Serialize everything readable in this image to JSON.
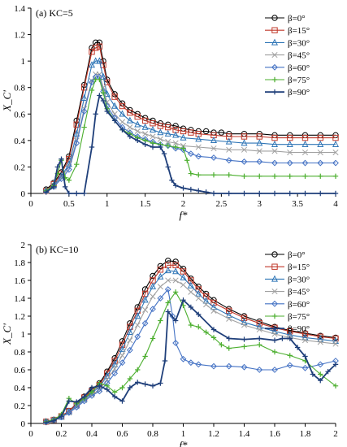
{
  "chart_data": [
    {
      "type": "line",
      "title": "(a) KC=5",
      "xlabel": "f*",
      "ylabel": "X_C'",
      "xlim": [
        0,
        4
      ],
      "ylim": [
        0,
        1.4
      ],
      "xticks": [
        "0",
        "0.5",
        "1",
        "1.5",
        "2",
        "2.5",
        "3",
        "3.5",
        "4"
      ],
      "yticks": [
        "0",
        "0.2",
        "0.4",
        "0.6",
        "0.8",
        "1",
        "1.2",
        "1.4"
      ],
      "grid": false,
      "legend_position": "top-right",
      "series": [
        {
          "name": "β=0°",
          "color": "#000000",
          "marker": "circle",
          "x": [
            0.2,
            0.3,
            0.4,
            0.5,
            0.6,
            0.7,
            0.8,
            0.85,
            0.9,
            0.95,
            1.0,
            1.1,
            1.2,
            1.3,
            1.4,
            1.5,
            1.6,
            1.7,
            1.8,
            1.9,
            2.0,
            2.1,
            2.2,
            2.3,
            2.4,
            2.5,
            2.6,
            2.8,
            3.0,
            3.2,
            3.4,
            3.6,
            3.8,
            4.0
          ],
          "y": [
            0.03,
            0.08,
            0.16,
            0.28,
            0.55,
            0.82,
            1.1,
            1.14,
            1.14,
            1.0,
            0.86,
            0.75,
            0.68,
            0.63,
            0.6,
            0.57,
            0.55,
            0.53,
            0.52,
            0.51,
            0.49,
            0.48,
            0.47,
            0.47,
            0.46,
            0.46,
            0.45,
            0.45,
            0.45,
            0.44,
            0.44,
            0.44,
            0.44,
            0.44
          ]
        },
        {
          "name": "β=15°",
          "color": "#c0392b",
          "marker": "square",
          "x": [
            0.2,
            0.3,
            0.4,
            0.5,
            0.6,
            0.7,
            0.8,
            0.85,
            0.9,
            0.95,
            1.0,
            1.1,
            1.2,
            1.3,
            1.4,
            1.5,
            1.6,
            1.7,
            1.8,
            1.9,
            2.0,
            2.1,
            2.2,
            2.4,
            2.6,
            2.8,
            3.0,
            3.2,
            3.4,
            3.6,
            3.8,
            4.0
          ],
          "y": [
            0.02,
            0.07,
            0.15,
            0.26,
            0.52,
            0.8,
            1.07,
            1.1,
            1.11,
            0.97,
            0.84,
            0.73,
            0.66,
            0.61,
            0.58,
            0.55,
            0.53,
            0.51,
            0.5,
            0.48,
            0.47,
            0.46,
            0.45,
            0.44,
            0.43,
            0.43,
            0.43,
            0.42,
            0.42,
            0.42,
            0.42,
            0.42
          ]
        },
        {
          "name": "β=30°",
          "color": "#2e75b6",
          "marker": "triangle",
          "x": [
            0.2,
            0.3,
            0.4,
            0.5,
            0.6,
            0.7,
            0.8,
            0.85,
            0.9,
            0.95,
            1.0,
            1.1,
            1.2,
            1.3,
            1.4,
            1.5,
            1.6,
            1.7,
            1.8,
            1.9,
            2.0,
            2.2,
            2.4,
            2.6,
            2.8,
            3.0,
            3.2,
            3.4,
            3.6,
            3.8,
            4.0
          ],
          "y": [
            0.02,
            0.06,
            0.13,
            0.22,
            0.45,
            0.72,
            0.97,
            1.0,
            1.0,
            0.88,
            0.75,
            0.66,
            0.6,
            0.55,
            0.52,
            0.5,
            0.48,
            0.46,
            0.45,
            0.44,
            0.42,
            0.41,
            0.4,
            0.39,
            0.38,
            0.38,
            0.37,
            0.37,
            0.37,
            0.37,
            0.37
          ]
        },
        {
          "name": "β=45°",
          "color": "#a0a0a0",
          "marker": "x",
          "x": [
            0.2,
            0.3,
            0.4,
            0.5,
            0.6,
            0.7,
            0.8,
            0.85,
            0.9,
            0.95,
            1.0,
            1.1,
            1.2,
            1.3,
            1.4,
            1.5,
            1.6,
            1.7,
            1.8,
            1.9,
            2.0,
            2.2,
            2.4,
            2.6,
            2.8,
            3.0,
            3.2,
            3.4,
            3.6,
            3.8,
            4.0
          ],
          "y": [
            0.02,
            0.05,
            0.12,
            0.2,
            0.4,
            0.64,
            0.85,
            0.9,
            0.9,
            0.8,
            0.69,
            0.6,
            0.54,
            0.5,
            0.47,
            0.45,
            0.43,
            0.41,
            0.39,
            0.38,
            0.36,
            0.35,
            0.34,
            0.33,
            0.33,
            0.32,
            0.32,
            0.31,
            0.31,
            0.31,
            0.31
          ]
        },
        {
          "name": "β=60°",
          "color": "#4472c4",
          "marker": "diamond",
          "x": [
            0.2,
            0.3,
            0.4,
            0.5,
            0.6,
            0.7,
            0.8,
            0.85,
            0.9,
            0.95,
            1.0,
            1.1,
            1.2,
            1.3,
            1.4,
            1.5,
            1.6,
            1.7,
            1.8,
            1.9,
            2.0,
            2.1,
            2.2,
            2.4,
            2.6,
            2.8,
            3.0,
            3.2,
            3.4,
            3.6,
            3.8,
            4.0
          ],
          "y": [
            0.02,
            0.05,
            0.11,
            0.18,
            0.38,
            0.62,
            0.84,
            0.88,
            0.88,
            0.77,
            0.66,
            0.57,
            0.5,
            0.46,
            0.43,
            0.41,
            0.39,
            0.37,
            0.36,
            0.34,
            0.33,
            0.3,
            0.28,
            0.27,
            0.25,
            0.24,
            0.24,
            0.23,
            0.23,
            0.23,
            0.23,
            0.23
          ]
        },
        {
          "name": "β=75°",
          "color": "#4caf2f",
          "marker": "plus",
          "x": [
            0.2,
            0.3,
            0.35,
            0.4,
            0.45,
            0.5,
            0.6,
            0.7,
            0.8,
            0.85,
            0.9,
            0.95,
            1.0,
            1.1,
            1.2,
            1.3,
            1.4,
            1.5,
            1.6,
            1.7,
            1.8,
            1.9,
            2.0,
            2.05,
            2.1,
            2.2,
            2.4,
            2.6,
            2.8,
            3.0,
            3.2,
            3.4,
            3.6,
            3.8,
            4.0
          ],
          "y": [
            0.02,
            0.06,
            0.15,
            0.25,
            0.12,
            0.1,
            0.22,
            0.5,
            0.78,
            0.86,
            0.86,
            0.76,
            0.64,
            0.55,
            0.48,
            0.45,
            0.42,
            0.4,
            0.38,
            0.37,
            0.36,
            0.35,
            0.34,
            0.25,
            0.15,
            0.14,
            0.14,
            0.14,
            0.13,
            0.13,
            0.13,
            0.13,
            0.13,
            0.13,
            0.13
          ]
        },
        {
          "name": "β=90°",
          "color": "#1f3f7a",
          "marker": "plus",
          "x": [
            0.2,
            0.3,
            0.35,
            0.4,
            0.45,
            0.5,
            0.6,
            0.7,
            0.8,
            0.85,
            0.9,
            0.95,
            1.0,
            1.1,
            1.2,
            1.3,
            1.4,
            1.5,
            1.6,
            1.7,
            1.75,
            1.8,
            1.85,
            1.9,
            2.0,
            2.1,
            2.2,
            2.3,
            2.4,
            2.6,
            2.8,
            3.0,
            3.2,
            3.4,
            3.6,
            3.8,
            4.0
          ],
          "y": [
            0.01,
            0.05,
            0.2,
            0.26,
            0.05,
            0.0,
            0.0,
            0.0,
            0.35,
            0.6,
            0.74,
            0.7,
            0.62,
            0.55,
            0.48,
            0.43,
            0.4,
            0.37,
            0.35,
            0.35,
            0.3,
            0.2,
            0.1,
            0.06,
            0.04,
            0.03,
            0.02,
            0.01,
            0.0,
            0.0,
            0.0,
            0.0,
            0.0,
            0.0,
            0.0,
            0.0,
            0.0
          ]
        }
      ]
    },
    {
      "type": "line",
      "title": "(b) KC=10",
      "xlabel": "f*",
      "ylabel": "X_C'",
      "xlim": [
        0,
        2
      ],
      "ylim": [
        0,
        2
      ],
      "xticks": [
        "0",
        "0.2",
        "0.4",
        "0.6",
        "0.8",
        "1",
        "1.2",
        "1.4",
        "1.6",
        "1.8",
        "2"
      ],
      "yticks": [
        "0",
        "0.2",
        "0.4",
        "0.6",
        "0.8",
        "1",
        "1.2",
        "1.4",
        "1.6",
        "1.8",
        "2"
      ],
      "grid": false,
      "legend_position": "top-right",
      "series": [
        {
          "name": "β=0°",
          "color": "#000000",
          "marker": "circle",
          "x": [
            0.1,
            0.15,
            0.2,
            0.25,
            0.3,
            0.35,
            0.4,
            0.45,
            0.5,
            0.55,
            0.6,
            0.65,
            0.7,
            0.75,
            0.8,
            0.85,
            0.9,
            0.95,
            1.0,
            1.05,
            1.1,
            1.15,
            1.2,
            1.3,
            1.4,
            1.5,
            1.6,
            1.7,
            1.8,
            1.9,
            2.0
          ],
          "y": [
            0.02,
            0.04,
            0.08,
            0.14,
            0.22,
            0.3,
            0.38,
            0.45,
            0.58,
            0.73,
            0.92,
            1.12,
            1.3,
            1.5,
            1.65,
            1.76,
            1.82,
            1.81,
            1.73,
            1.62,
            1.53,
            1.45,
            1.38,
            1.28,
            1.2,
            1.14,
            1.08,
            1.04,
            1.01,
            0.98,
            0.96
          ]
        },
        {
          "name": "β=15°",
          "color": "#c0392b",
          "marker": "square",
          "x": [
            0.1,
            0.15,
            0.2,
            0.25,
            0.3,
            0.35,
            0.4,
            0.45,
            0.5,
            0.55,
            0.6,
            0.65,
            0.7,
            0.75,
            0.8,
            0.85,
            0.9,
            0.95,
            1.0,
            1.05,
            1.1,
            1.15,
            1.2,
            1.3,
            1.4,
            1.5,
            1.6,
            1.7,
            1.8,
            1.9,
            2.0
          ],
          "y": [
            0.02,
            0.04,
            0.08,
            0.14,
            0.21,
            0.29,
            0.36,
            0.43,
            0.56,
            0.7,
            0.88,
            1.08,
            1.26,
            1.45,
            1.6,
            1.72,
            1.77,
            1.77,
            1.7,
            1.6,
            1.5,
            1.42,
            1.35,
            1.26,
            1.18,
            1.12,
            1.07,
            1.03,
            1.0,
            0.97,
            0.95
          ]
        },
        {
          "name": "β=30°",
          "color": "#2e75b6",
          "marker": "triangle",
          "x": [
            0.1,
            0.15,
            0.2,
            0.25,
            0.3,
            0.35,
            0.4,
            0.45,
            0.5,
            0.55,
            0.6,
            0.65,
            0.7,
            0.75,
            0.8,
            0.85,
            0.9,
            0.95,
            1.0,
            1.05,
            1.1,
            1.15,
            1.2,
            1.3,
            1.4,
            1.5,
            1.6,
            1.7,
            1.8,
            1.9,
            2.0
          ],
          "y": [
            0.02,
            0.04,
            0.07,
            0.13,
            0.2,
            0.27,
            0.34,
            0.41,
            0.53,
            0.66,
            0.83,
            1.02,
            1.2,
            1.38,
            1.53,
            1.64,
            1.71,
            1.7,
            1.63,
            1.54,
            1.45,
            1.37,
            1.3,
            1.21,
            1.13,
            1.08,
            1.03,
            0.99,
            0.96,
            0.94,
            0.92
          ]
        },
        {
          "name": "β=45°",
          "color": "#a0a0a0",
          "marker": "x",
          "x": [
            0.1,
            0.15,
            0.2,
            0.25,
            0.3,
            0.35,
            0.4,
            0.45,
            0.5,
            0.55,
            0.6,
            0.65,
            0.7,
            0.75,
            0.8,
            0.85,
            0.9,
            0.95,
            1.0,
            1.05,
            1.1,
            1.15,
            1.2,
            1.3,
            1.4,
            1.5,
            1.6,
            1.7,
            1.8,
            1.9,
            2.0
          ],
          "y": [
            0.02,
            0.04,
            0.07,
            0.12,
            0.19,
            0.26,
            0.32,
            0.38,
            0.49,
            0.61,
            0.76,
            0.93,
            1.1,
            1.27,
            1.42,
            1.53,
            1.6,
            1.6,
            1.55,
            1.47,
            1.4,
            1.33,
            1.26,
            1.17,
            1.1,
            1.05,
            1.0,
            0.96,
            0.93,
            0.91,
            0.89
          ]
        },
        {
          "name": "β=60°",
          "color": "#4472c4",
          "marker": "diamond",
          "x": [
            0.1,
            0.15,
            0.2,
            0.25,
            0.3,
            0.35,
            0.4,
            0.45,
            0.5,
            0.55,
            0.6,
            0.65,
            0.7,
            0.75,
            0.8,
            0.85,
            0.9,
            0.93,
            0.95,
            1.0,
            1.05,
            1.1,
            1.2,
            1.3,
            1.4,
            1.5,
            1.6,
            1.7,
            1.8,
            1.9,
            2.0
          ],
          "y": [
            0.02,
            0.04,
            0.07,
            0.12,
            0.18,
            0.25,
            0.31,
            0.36,
            0.45,
            0.56,
            0.68,
            0.82,
            0.97,
            1.12,
            1.28,
            1.4,
            1.5,
            1.2,
            0.9,
            0.72,
            0.68,
            0.66,
            0.64,
            0.64,
            0.63,
            0.6,
            0.6,
            0.65,
            0.62,
            0.66,
            0.7
          ]
        },
        {
          "name": "β=75°",
          "color": "#4caf2f",
          "marker": "plus",
          "x": [
            0.1,
            0.15,
            0.2,
            0.25,
            0.3,
            0.35,
            0.4,
            0.45,
            0.5,
            0.55,
            0.6,
            0.65,
            0.7,
            0.75,
            0.8,
            0.85,
            0.9,
            0.95,
            1.0,
            1.05,
            1.1,
            1.15,
            1.2,
            1.25,
            1.3,
            1.4,
            1.5,
            1.6,
            1.7,
            1.8,
            1.9,
            2.0
          ],
          "y": [
            0.02,
            0.04,
            0.1,
            0.28,
            0.22,
            0.28,
            0.35,
            0.45,
            0.42,
            0.35,
            0.4,
            0.5,
            0.6,
            0.75,
            0.95,
            1.15,
            1.35,
            1.47,
            1.32,
            1.1,
            1.08,
            1.02,
            0.96,
            0.88,
            0.84,
            0.86,
            0.88,
            0.8,
            0.76,
            0.7,
            0.55,
            0.42
          ]
        },
        {
          "name": "β=90°",
          "color": "#1f3f7a",
          "marker": "plus",
          "x": [
            0.1,
            0.15,
            0.2,
            0.25,
            0.3,
            0.35,
            0.4,
            0.45,
            0.5,
            0.55,
            0.6,
            0.65,
            0.7,
            0.75,
            0.8,
            0.85,
            0.88,
            0.9,
            0.95,
            1.0,
            1.05,
            1.1,
            1.2,
            1.3,
            1.4,
            1.5,
            1.6,
            1.65,
            1.7,
            1.75,
            1.8,
            1.85,
            1.9,
            1.95,
            2.0
          ],
          "y": [
            0.01,
            0.03,
            0.08,
            0.25,
            0.24,
            0.3,
            0.4,
            0.42,
            0.38,
            0.3,
            0.25,
            0.4,
            0.46,
            0.44,
            0.42,
            0.45,
            0.7,
            1.25,
            1.15,
            1.38,
            1.3,
            1.22,
            1.05,
            0.95,
            0.94,
            0.95,
            0.93,
            0.95,
            0.95,
            0.85,
            0.75,
            0.55,
            0.48,
            0.58,
            0.66
          ]
        }
      ]
    }
  ]
}
